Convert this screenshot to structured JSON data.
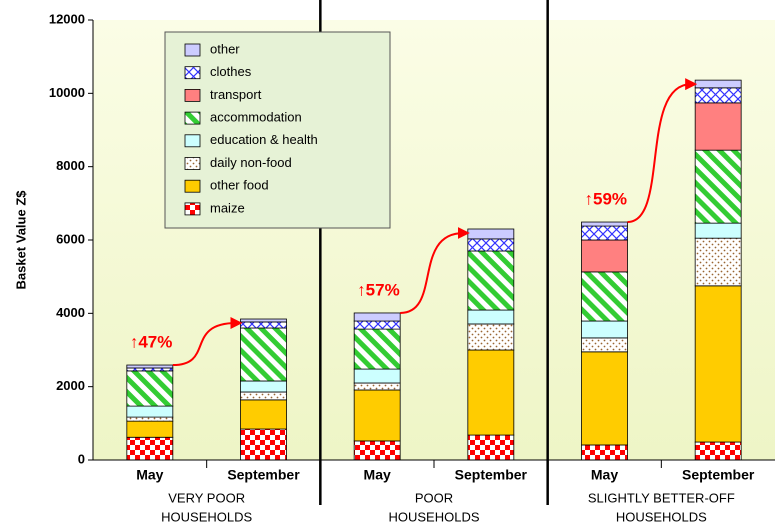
{
  "chart_data": {
    "type": "stacked_bar",
    "ylabel": "Basket Value Z$",
    "categories": [
      "May",
      "September",
      "May",
      "September",
      "May",
      "September"
    ],
    "groups": [
      {
        "label": [
          "VERY POOR",
          "HOUSEHOLDS"
        ]
      },
      {
        "label": [
          "POOR",
          "HOUSEHOLDS"
        ]
      },
      {
        "label": [
          "SLIGHTLY BETTER-OFF",
          "HOUSEHOLDS"
        ]
      }
    ],
    "series": [
      {
        "name": "maize",
        "color": "#ff0000",
        "values": [
          620,
          845,
          520,
          680,
          410,
          490
        ]
      },
      {
        "name": "other food",
        "color": "#ffcc00",
        "values": [
          440,
          795,
          1390,
          2320,
          2540,
          4260
        ]
      },
      {
        "name": "daily non-food",
        "color": "#996633",
        "values": [
          110,
          215,
          190,
          710,
          380,
          1300
        ]
      },
      {
        "name": "education & health",
        "color": "#ccffff",
        "values": [
          300,
          300,
          380,
          380,
          460,
          410
        ]
      },
      {
        "name": "accommodation",
        "color": "#33cc33",
        "values": [
          960,
          1445,
          1090,
          1610,
          1340,
          1990
        ]
      },
      {
        "name": "transport",
        "color": "#ff8080",
        "values": [
          0,
          0,
          0,
          0,
          870,
          1290
        ]
      },
      {
        "name": "clothes",
        "color": "#3333ff",
        "values": [
          80,
          165,
          220,
          330,
          380,
          410
        ]
      },
      {
        "name": "other",
        "color": "#ccccff",
        "values": [
          80,
          80,
          220,
          270,
          110,
          210
        ]
      }
    ],
    "annotations": [
      {
        "text": "↑47%",
        "group": 0
      },
      {
        "text": "↑57%",
        "group": 1
      },
      {
        "text": "↑59%",
        "group": 2
      }
    ],
    "ylim": [
      0,
      12000
    ],
    "yticks": [
      0,
      2000,
      4000,
      6000,
      8000,
      10000,
      12000
    ]
  }
}
